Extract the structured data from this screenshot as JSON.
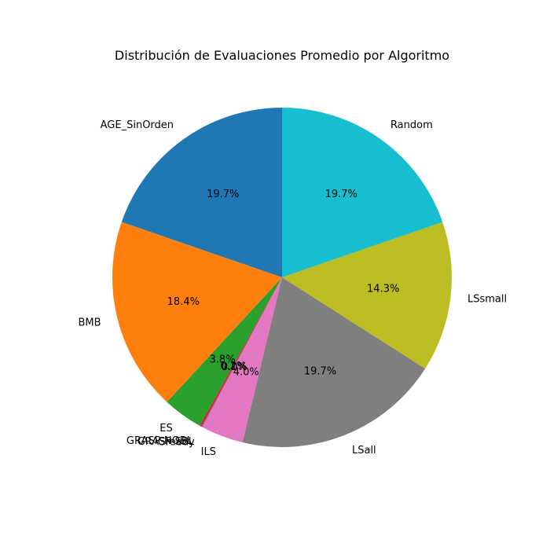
{
  "chart_data": {
    "type": "pie",
    "title": "Distribución de Evaluaciones Promedio por Algoritmo",
    "slices": [
      {
        "label": "AGE_SinOrden",
        "value": 19.7,
        "pct_label": "19.7%",
        "color": "#1f77b4"
      },
      {
        "label": "BMB",
        "value": 18.4,
        "pct_label": "18.4%",
        "color": "#ff7f0e"
      },
      {
        "label": "ES",
        "value": 3.8,
        "pct_label": "3.8%",
        "color": "#2ca02c"
      },
      {
        "label": "GRASP-NOBL",
        "value": 0.2,
        "pct_label": "0.2%",
        "color": "#d62728"
      },
      {
        "label": "GRASP-SBL",
        "value": 0.1,
        "pct_label": "0.1%",
        "color": "#9467bd"
      },
      {
        "label": "Greedy",
        "value": 0.01,
        "pct_label": "0.0%",
        "color": "#8c564b"
      },
      {
        "label": "ILS",
        "value": 4.0,
        "pct_label": "4.0%",
        "color": "#e377c2"
      },
      {
        "label": "LSall",
        "value": 19.7,
        "pct_label": "19.7%",
        "color": "#7f7f7f"
      },
      {
        "label": "LSsmall",
        "value": 14.3,
        "pct_label": "14.3%",
        "color": "#bcbd22"
      },
      {
        "label": "Random",
        "value": 19.7,
        "pct_label": "19.7%",
        "color": "#17becf"
      }
    ],
    "start_angle_deg": 90,
    "direction": "counterclockwise",
    "legend": "none"
  }
}
